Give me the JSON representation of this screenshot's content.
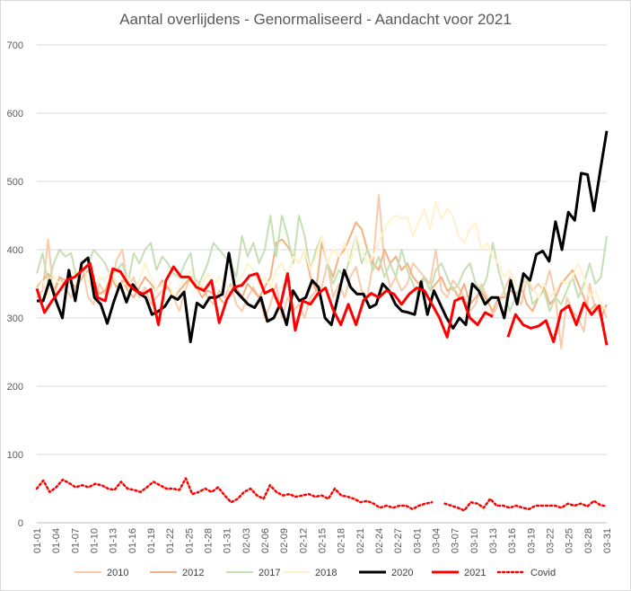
{
  "chart_data": {
    "type": "line",
    "title": "Aantal overlijdens - Genormaliseerd - Aandacht voor 2021",
    "xlabel": "",
    "ylabel": "",
    "ylim": [
      0,
      700
    ],
    "yticks": [
      0,
      100,
      200,
      300,
      400,
      500,
      600,
      700
    ],
    "grid": true,
    "legend_position": "bottom",
    "x_tick_labels": [
      "01-01",
      "01-04",
      "01-07",
      "01-10",
      "01-13",
      "01-16",
      "01-19",
      "01-22",
      "01-25",
      "01-28",
      "01-31",
      "02-03",
      "02-06",
      "02-09",
      "02-12",
      "02-15",
      "02-18",
      "02-21",
      "02-24",
      "02-27",
      "03-01",
      "03-04",
      "03-07",
      "03-10",
      "03-13",
      "03-16",
      "03-19",
      "03-22",
      "03-25",
      "03-28",
      "03-31"
    ],
    "series": [
      {
        "name": "2010",
        "color": "#f8cbad",
        "width": 2,
        "dash": false,
        "values": [
          330,
          340,
          415,
          330,
          360,
          345,
          330,
          350,
          375,
          330,
          320,
          350,
          335,
          345,
          385,
          400,
          345,
          360,
          330,
          345,
          320,
          330,
          340,
          345,
          330,
          310,
          340,
          360,
          355,
          345,
          330,
          320,
          340,
          330,
          350,
          320,
          310,
          330,
          345,
          330,
          300,
          320,
          350,
          300,
          330,
          310,
          320,
          300,
          330,
          340,
          345,
          380,
          330,
          350,
          330,
          360,
          375,
          340,
          330,
          380,
          480,
          380,
          345,
          360,
          340,
          350,
          380,
          370,
          360,
          350,
          400,
          340,
          330,
          355,
          345,
          330,
          310,
          320,
          350,
          330,
          305,
          320,
          340,
          360,
          330,
          320,
          360,
          340,
          350,
          340,
          370,
          330,
          255,
          330,
          310,
          300,
          280,
          350,
          310,
          320,
          300
        ]
      },
      {
        "name": "2012",
        "color": "#f4b183",
        "width": 2,
        "dash": false,
        "values": [
          345,
          355,
          365,
          340,
          360,
          355,
          350,
          345,
          360,
          370,
          355,
          335,
          340,
          360,
          345,
          355,
          340,
          330,
          345,
          360,
          350,
          340,
          355,
          345,
          330,
          340,
          350,
          360,
          345,
          330,
          340,
          335,
          330,
          320,
          340,
          345,
          330,
          350,
          340,
          330,
          345,
          360,
          410,
          415,
          405,
          390,
          380,
          400,
          360,
          340,
          410,
          380,
          360,
          390,
          400,
          420,
          440,
          430,
          400,
          380,
          370,
          400,
          380,
          390,
          370,
          380,
          360,
          350,
          360,
          340,
          350,
          360,
          340,
          345,
          330,
          350,
          320,
          330,
          340,
          325,
          310,
          330,
          330,
          340,
          335,
          345,
          320,
          310,
          330,
          345,
          320,
          330,
          350,
          360,
          370,
          350,
          330,
          310,
          320,
          300,
          320
        ]
      },
      {
        "name": "2017",
        "color": "#c5e0b4",
        "width": 2,
        "dash": false,
        "values": [
          365,
          395,
          350,
          380,
          400,
          390,
          395,
          360,
          370,
          380,
          400,
          390,
          380,
          360,
          370,
          380,
          350,
          395,
          380,
          400,
          410,
          370,
          390,
          380,
          365,
          360,
          380,
          395,
          340,
          360,
          380,
          410,
          400,
          390,
          380,
          360,
          420,
          390,
          410,
          380,
          400,
          450,
          390,
          450,
          420,
          380,
          450,
          420,
          370,
          400,
          420,
          380,
          350,
          370,
          360,
          390,
          420,
          380,
          400,
          370,
          390,
          360,
          380,
          360,
          400,
          370,
          350,
          330,
          360,
          340,
          370,
          380,
          360,
          340,
          350,
          370,
          380,
          350,
          340,
          360,
          410,
          370,
          340,
          310,
          330,
          350,
          360,
          320,
          330,
          340,
          310,
          330,
          320,
          340,
          360,
          330,
          350,
          380,
          350,
          360,
          420
        ]
      },
      {
        "name": "2018",
        "color": "#fff2cc",
        "width": 2,
        "dash": false,
        "values": [
          340,
          355,
          330,
          360,
          350,
          345,
          370,
          360,
          380,
          355,
          340,
          360,
          355,
          370,
          350,
          345,
          360,
          340,
          355,
          380,
          360,
          340,
          350,
          355,
          330,
          345,
          360,
          370,
          340,
          350,
          365,
          345,
          360,
          350,
          340,
          355,
          360,
          380,
          370,
          350,
          360,
          345,
          370,
          380,
          360,
          390,
          380,
          400,
          370,
          390,
          420,
          380,
          400,
          390,
          410,
          380,
          420,
          400,
          380,
          390,
          410,
          430,
          445,
          450,
          445,
          448,
          420,
          440,
          460,
          430,
          470,
          445,
          460,
          450,
          420,
          410,
          430,
          440,
          400,
          410,
          390,
          380,
          360,
          370,
          350,
          340,
          360,
          345,
          330,
          350,
          330,
          340,
          355,
          350,
          360,
          380,
          360,
          330,
          340,
          320,
          310
        ]
      },
      {
        "name": "2020",
        "color": "#000000",
        "width": 3,
        "dash": false,
        "values": [
          325,
          325,
          355,
          325,
          300,
          370,
          325,
          380,
          388,
          330,
          320,
          292,
          323,
          350,
          323,
          349,
          336,
          330,
          305,
          310,
          317,
          332,
          327,
          338,
          265,
          322,
          315,
          330,
          330,
          335,
          395,
          340,
          330,
          320,
          315,
          330,
          295,
          300,
          320,
          290,
          340,
          325,
          330,
          355,
          345,
          300,
          290,
          330,
          370,
          345,
          335,
          335,
          315,
          320,
          350,
          340,
          320,
          310,
          308,
          305,
          353,
          305,
          340,
          320,
          300,
          285,
          300,
          290,
          350,
          340,
          320,
          330,
          330,
          300,
          355,
          320,
          365,
          355,
          393,
          398,
          383,
          441,
          400,
          455,
          443,
          512,
          510,
          457,
          517,
          574
        ]
      },
      {
        "name": "2021",
        "color": "#ff0000",
        "width": 3,
        "dash": false,
        "values": [
          343,
          308,
          325,
          340,
          356,
          360,
          370,
          380,
          330,
          325,
          372,
          368,
          350,
          340,
          335,
          342,
          290,
          355,
          375,
          360,
          360,
          345,
          340,
          355,
          293,
          327,
          345,
          348,
          362,
          365,
          336,
          342,
          315,
          365,
          282,
          325,
          320,
          336,
          344,
          312,
          290,
          320,
          290,
          326,
          336,
          330,
          340,
          335,
          320,
          335,
          344,
          340,
          320,
          300,
          272,
          325,
          330,
          300,
          290,
          308,
          302,
          null,
          272,
          305,
          290,
          285,
          288,
          296,
          265,
          310,
          318,
          290,
          322,
          305,
          318,
          260
        ]
      },
      {
        "name": "Covid",
        "color": "#ff0000",
        "width": 2.5,
        "dash": true,
        "values": [
          50,
          62,
          45,
          52,
          63,
          58,
          52,
          55,
          52,
          57,
          55,
          50,
          48,
          60,
          50,
          48,
          45,
          52,
          60,
          55,
          50,
          50,
          48,
          65,
          42,
          45,
          50,
          45,
          52,
          40,
          30,
          35,
          45,
          50,
          40,
          35,
          55,
          45,
          40,
          42,
          38,
          40,
          42,
          38,
          40,
          35,
          50,
          40,
          38,
          35,
          30,
          32,
          28,
          22,
          25,
          22,
          25,
          25,
          20,
          25,
          28,
          30,
          null,
          28,
          25,
          22,
          18,
          30,
          28,
          22,
          35,
          25,
          25,
          22,
          25,
          22,
          20,
          25,
          25,
          25,
          25,
          22,
          28,
          25,
          28,
          24,
          32,
          26,
          24
        ]
      }
    ]
  }
}
